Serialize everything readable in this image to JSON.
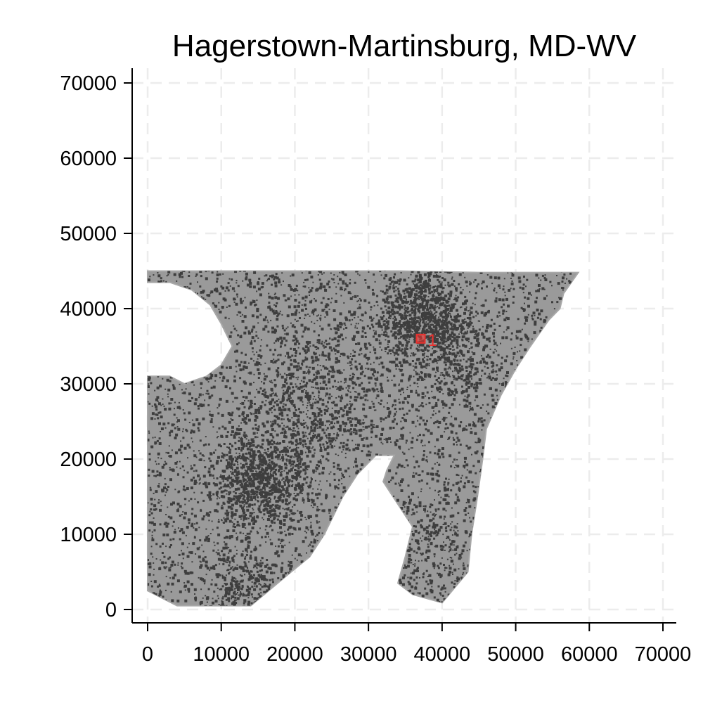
{
  "title": "Hagerstown-Martinsburg, MD-WV",
  "chart_data": {
    "type": "scatter",
    "title": "Hagerstown-Martinsburg, MD-WV",
    "xlim": [
      0,
      70000
    ],
    "ylim": [
      0,
      70000
    ],
    "x_ticks": [
      "0",
      "10000",
      "20000",
      "30000",
      "40000",
      "50000",
      "60000",
      "70000"
    ],
    "y_ticks": [
      "0",
      "10000",
      "20000",
      "30000",
      "40000",
      "50000",
      "60000",
      "70000"
    ],
    "grid": true,
    "region_outline": [
      [
        0,
        45000
      ],
      [
        8000,
        45000
      ],
      [
        16000,
        45000
      ],
      [
        25000,
        45000
      ],
      [
        34000,
        45000
      ],
      [
        45000,
        44800
      ],
      [
        52000,
        44800
      ],
      [
        58500,
        44800
      ],
      [
        56500,
        42000
      ],
      [
        56000,
        40000
      ],
      [
        54500,
        38500
      ],
      [
        52000,
        35000
      ],
      [
        50000,
        32000
      ],
      [
        48000,
        28500
      ],
      [
        46000,
        24000
      ],
      [
        45500,
        20000
      ],
      [
        44800,
        15000
      ],
      [
        44000,
        10000
      ],
      [
        43500,
        5000
      ],
      [
        40000,
        900
      ],
      [
        36000,
        2000
      ],
      [
        34000,
        3500
      ],
      [
        35000,
        7000
      ],
      [
        36000,
        11000
      ],
      [
        34000,
        14000
      ],
      [
        32000,
        17000
      ],
      [
        32500,
        18500
      ],
      [
        33500,
        20500
      ],
      [
        31000,
        20500
      ],
      [
        28500,
        18000
      ],
      [
        26500,
        15000
      ],
      [
        24000,
        10000
      ],
      [
        22000,
        7000
      ],
      [
        19500,
        5000
      ],
      [
        14000,
        500
      ],
      [
        4000,
        500
      ],
      [
        0,
        2500
      ],
      [
        0,
        10000
      ],
      [
        0,
        20000
      ],
      [
        0,
        31000
      ],
      [
        3000,
        31000
      ],
      [
        5000,
        30000
      ],
      [
        8000,
        31000
      ],
      [
        10000,
        32500
      ],
      [
        11500,
        35000
      ],
      [
        10000,
        38000
      ],
      [
        8500,
        40500
      ],
      [
        6000,
        42500
      ],
      [
        3000,
        43500
      ],
      [
        0,
        43500
      ]
    ],
    "markers": [
      {
        "label": "1",
        "x": 37100,
        "y": 36000,
        "color": "#e8322f"
      }
    ],
    "colors": {
      "region": "#9a9a9a",
      "density": "#3e3e3e",
      "grid": "#ececec",
      "axis": "#000000"
    }
  }
}
